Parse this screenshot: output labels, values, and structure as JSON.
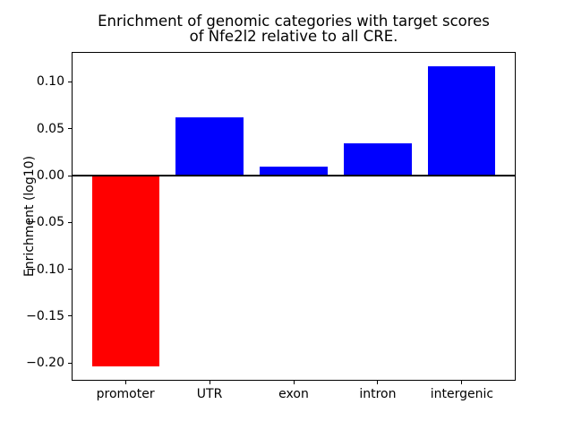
{
  "figure": {
    "background": "#ffffff"
  },
  "chart_data": {
    "type": "bar",
    "title": "Enrichment of genomic categories with target scores\nof Nfe2l2 relative to all CRE.",
    "xlabel": "",
    "ylabel": "Enrichment (log10)",
    "categories": [
      "promoter",
      "UTR",
      "exon",
      "intron",
      "intergenic"
    ],
    "values": [
      -0.204,
      0.062,
      0.01,
      0.034,
      0.117
    ],
    "bar_colors": [
      "#ff0000",
      "#0000ff",
      "#0000ff",
      "#0000ff",
      "#0000ff"
    ],
    "positive_color": "#0000ff",
    "negative_color": "#ff0000",
    "ylim": [
      -0.219,
      0.132
    ],
    "xlim": [
      -0.64,
      4.64
    ],
    "yticks": [
      0.1,
      0.05,
      0.0,
      -0.05,
      -0.1,
      -0.15,
      -0.2
    ],
    "ytick_labels": [
      "0.10",
      "0.05",
      "0.00",
      "−0.05",
      "−0.10",
      "−0.15",
      "−0.20"
    ],
    "bar_width": 0.8,
    "grid": false,
    "zero_line": true,
    "legend": null
  }
}
